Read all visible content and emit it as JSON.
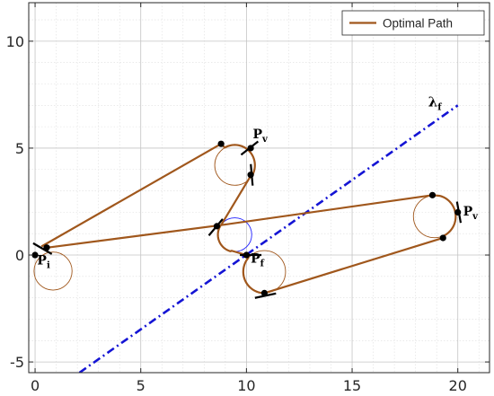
{
  "chart_data": {
    "type": "line",
    "title": "",
    "xlabel": "",
    "ylabel": "",
    "xlim": [
      -0.3,
      21.5
    ],
    "ylim": [
      -5.5,
      11.8
    ],
    "x_ticks": [
      0,
      5,
      10,
      15,
      20
    ],
    "y_ticks": [
      -5,
      0,
      5,
      10
    ],
    "x_tick_labels": [
      "0",
      "5",
      "10",
      "15",
      "20"
    ],
    "y_tick_labels": [
      "-5",
      "0",
      "5",
      "10"
    ],
    "grid": true,
    "minor_grid": true,
    "legend": {
      "position": "top-right",
      "entries": [
        "Optimal Path"
      ]
    },
    "series": [
      {
        "name": "Optimal Path",
        "color": "#A0571C",
        "segments": [
          {
            "kind": "line",
            "x": [
              0.3,
              8.8
            ],
            "y": [
              0.4,
              5.2
            ]
          },
          {
            "kind": "arc",
            "center": [
              9.45,
              4.2
            ],
            "radius": 0.95,
            "from_deg": 120,
            "to_deg": -30,
            "dir": "cw"
          },
          {
            "kind": "line",
            "x": [
              10.2,
              8.8
            ],
            "y": [
              3.7,
              1.4
            ]
          },
          {
            "kind": "arc",
            "center": [
              9.45,
              0.95
            ],
            "radius": 0.8,
            "from_deg": 145,
            "to_deg": 255,
            "dir": "ccw"
          },
          {
            "kind": "line",
            "x": [
              9.3,
              10.0
            ],
            "y": [
              0.2,
              0.0
            ]
          },
          {
            "kind": "arc",
            "center": [
              10.85,
              -0.78
            ],
            "radius": 1.0,
            "from_deg": 140,
            "to_deg": 272,
            "dir": "ccw"
          },
          {
            "kind": "line",
            "x": [
              10.85,
              19.3
            ],
            "y": [
              -1.78,
              0.8
            ]
          },
          {
            "kind": "arc",
            "center": [
              18.9,
              1.8
            ],
            "radius": 1.0,
            "from_deg": -65,
            "to_deg": 75,
            "dir": "ccw"
          },
          {
            "kind": "line",
            "x": [
              18.8,
              8.8
            ],
            "y": [
              2.8,
              1.4
            ]
          },
          {
            "kind": "line",
            "x": [
              8.8,
              0.6
            ],
            "y": [
              1.4,
              0.35
            ]
          }
        ]
      }
    ],
    "circles": [
      {
        "center": [
          0.85,
          -0.75
        ],
        "radius": 0.9,
        "color": "#A0571C"
      },
      {
        "center": [
          9.45,
          4.2
        ],
        "radius": 0.95,
        "color": "#A0571C"
      },
      {
        "center": [
          10.85,
          -0.78
        ],
        "radius": 1.0,
        "color": "#A0571C"
      },
      {
        "center": [
          18.9,
          1.8
        ],
        "radius": 1.0,
        "color": "#A0571C"
      },
      {
        "center": [
          9.45,
          0.95
        ],
        "radius": 0.8,
        "color": "#1f1fff"
      }
    ],
    "line_lambda": {
      "x": [
        2.1,
        20.0
      ],
      "y": [
        -5.5,
        7.0
      ],
      "color": "#1414d4",
      "style": "dash-dot"
    },
    "waypoints": [
      [
        0.0,
        0.0
      ],
      [
        0.55,
        0.35
      ],
      [
        8.8,
        5.2
      ],
      [
        10.2,
        5.0
      ],
      [
        10.2,
        3.75
      ],
      [
        8.6,
        1.35
      ],
      [
        10.0,
        0.0
      ],
      [
        10.85,
        -1.78
      ],
      [
        18.8,
        2.8
      ],
      [
        20.0,
        2.0
      ],
      [
        19.3,
        0.8
      ]
    ],
    "heading_ticks": [
      {
        "at": [
          10.15,
          5.0
        ],
        "angle_deg": 38
      },
      {
        "at": [
          10.25,
          3.75
        ],
        "angle_deg": 95
      },
      {
        "at": [
          8.55,
          1.3
        ],
        "angle_deg": 50
      },
      {
        "at": [
          0.35,
          0.3
        ],
        "angle_deg": -30
      },
      {
        "at": [
          10.9,
          -1.9
        ],
        "angle_deg": 12
      },
      {
        "at": [
          20.05,
          2.0
        ],
        "angle_deg": 100
      },
      {
        "at": [
          10.2,
          0.0
        ],
        "angle_deg": 0
      }
    ],
    "annotations": [
      {
        "text": "P",
        "sub": "v",
        "x": 10.3,
        "y": 5.45
      },
      {
        "text": "P",
        "sub": "i",
        "x": 0.1,
        "y": -0.45
      },
      {
        "text": "P",
        "sub": "f",
        "x": 10.2,
        "y": -0.35
      },
      {
        "text": "P",
        "sub": "v",
        "x": 20.25,
        "y": 1.85
      },
      {
        "text": "λ",
        "sub": "f",
        "x": 18.6,
        "y": 6.95
      }
    ]
  }
}
